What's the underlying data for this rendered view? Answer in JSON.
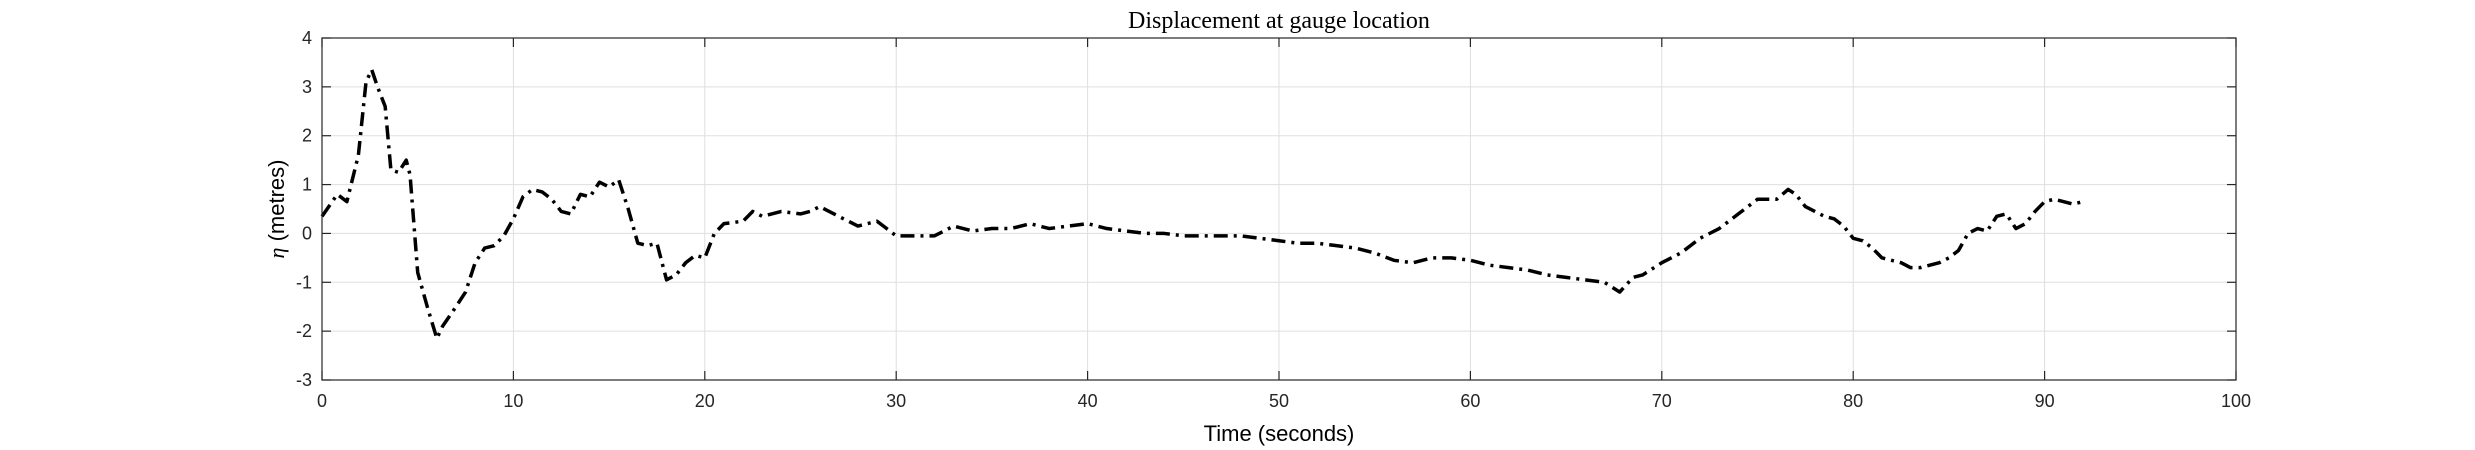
{
  "chart_data": {
    "type": "line",
    "title": "Displacement at gauge location",
    "xlabel": "Time (seconds)",
    "ylabel_symbol": "η",
    "ylabel_unit": " (metres)",
    "xlim": [
      0,
      100
    ],
    "ylim": [
      -3,
      4
    ],
    "xticks": [
      0,
      10,
      20,
      30,
      40,
      50,
      60,
      70,
      80,
      90,
      100
    ],
    "yticks": [
      -3,
      -2,
      -1,
      0,
      1,
      2,
      3,
      4
    ],
    "xtick_labels": [
      "0",
      "10",
      "20",
      "30",
      "40",
      "50",
      "60",
      "70",
      "80",
      "90",
      "100"
    ],
    "ytick_labels": [
      "-3",
      "-2",
      "-1",
      "0",
      "1",
      "2",
      "3",
      "4"
    ],
    "grid": true,
    "series": [
      {
        "x": [
          0,
          0.8,
          1.3,
          1.9,
          2.3,
          2.6,
          2.9,
          3.3,
          3.6,
          4.0,
          4.4,
          4.6,
          5.0,
          5.5,
          6.0,
          6.3,
          7.0,
          7.5,
          8.0,
          8.5,
          9.0,
          9.5,
          10.0,
          10.5,
          11.0,
          11.5,
          12.0,
          12.5,
          13.0,
          13.5,
          14.0,
          14.5,
          15.0,
          15.5,
          16.0,
          16.5,
          17.0,
          17.5,
          18.0,
          18.5,
          19.0,
          19.5,
          20.0,
          20.5,
          21.0,
          22.0,
          22.5,
          23.0,
          24.0,
          25.0,
          25.5,
          26.0,
          27.0,
          27.5,
          28.0,
          29.0,
          29.5,
          30.0,
          31.0,
          32.0,
          33.0,
          34.0,
          35.0,
          36.0,
          37.0,
          38.0,
          39.0,
          40.0,
          41.0,
          42.0,
          43.0,
          44.0,
          45.0,
          46.0,
          47.0,
          48.0,
          49.0,
          50.0,
          51.0,
          52.0,
          53.0,
          54.0,
          55.0,
          56.0,
          57.0,
          58.0,
          59.0,
          60.0,
          61.0,
          62.0,
          63.0,
          64.0,
          65.0,
          66.0,
          67.0,
          67.8,
          68.5,
          69.0,
          70.0,
          71.0,
          72.0,
          73.0,
          74.0,
          75.0,
          76.0,
          76.6,
          77.0,
          77.5,
          78.0,
          78.5,
          79.0,
          79.5,
          80.0,
          80.5,
          81.0,
          81.5,
          82.0,
          82.5,
          83.0,
          83.5,
          84.0,
          84.5,
          85.0,
          85.5,
          86.0,
          86.5,
          87.0,
          87.5,
          88.0,
          88.5,
          89.0,
          89.5,
          90.0,
          90.5,
          91.0,
          91.5,
          92.0
        ],
        "y": [
          0.35,
          0.8,
          0.65,
          1.6,
          3.1,
          3.35,
          3.0,
          2.6,
          1.3,
          1.25,
          1.5,
          1.2,
          -0.8,
          -1.5,
          -2.15,
          -1.9,
          -1.5,
          -1.2,
          -0.6,
          -0.3,
          -0.25,
          -0.05,
          0.3,
          0.75,
          0.9,
          0.85,
          0.7,
          0.45,
          0.4,
          0.8,
          0.75,
          1.05,
          0.95,
          1.1,
          0.5,
          -0.2,
          -0.25,
          -0.2,
          -0.95,
          -0.85,
          -0.6,
          -0.45,
          -0.5,
          0.0,
          0.2,
          0.25,
          0.45,
          0.35,
          0.45,
          0.4,
          0.45,
          0.55,
          0.35,
          0.25,
          0.15,
          0.25,
          0.1,
          -0.05,
          -0.05,
          -0.05,
          0.15,
          0.05,
          0.1,
          0.1,
          0.2,
          0.1,
          0.15,
          0.2,
          0.1,
          0.05,
          0.0,
          0.0,
          -0.05,
          -0.05,
          -0.05,
          -0.05,
          -0.1,
          -0.15,
          -0.2,
          -0.2,
          -0.25,
          -0.3,
          -0.4,
          -0.55,
          -0.6,
          -0.5,
          -0.5,
          -0.55,
          -0.65,
          -0.7,
          -0.75,
          -0.85,
          -0.9,
          -0.95,
          -1.0,
          -1.2,
          -0.9,
          -0.85,
          -0.6,
          -0.4,
          -0.1,
          0.1,
          0.4,
          0.7,
          0.7,
          0.9,
          0.8,
          0.55,
          0.45,
          0.35,
          0.3,
          0.15,
          -0.1,
          -0.15,
          -0.3,
          -0.5,
          -0.55,
          -0.6,
          -0.7,
          -0.7,
          -0.65,
          -0.6,
          -0.5,
          -0.35,
          0.0,
          0.1,
          0.05,
          0.35,
          0.4,
          0.1,
          0.2,
          0.45,
          0.65,
          0.7,
          0.65,
          0.6,
          0.65
        ],
        "color": "#000000"
      }
    ]
  }
}
